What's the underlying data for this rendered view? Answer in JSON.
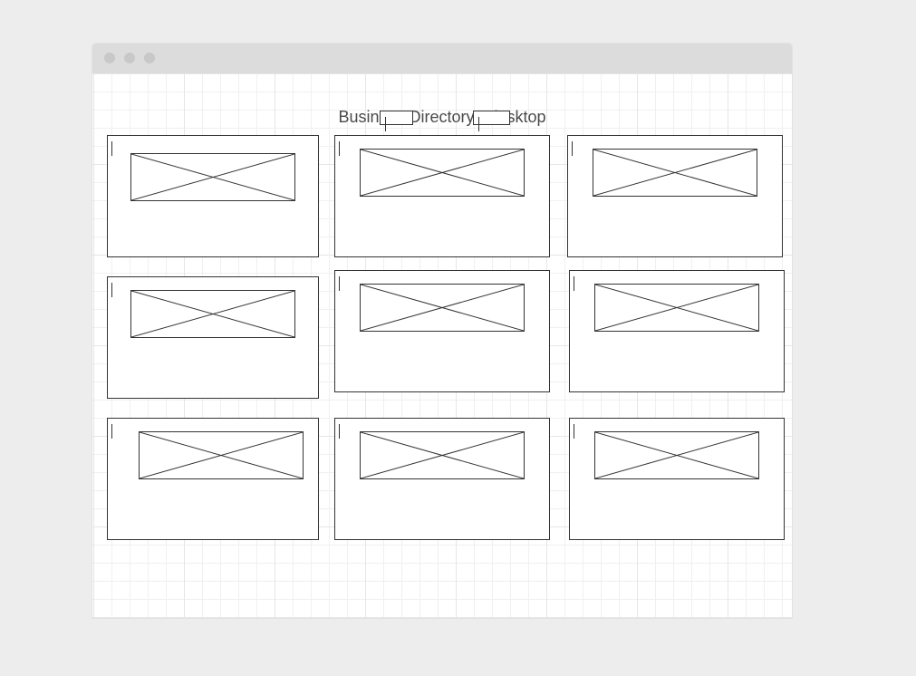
{
  "page": {
    "title": "Business Directory - desktop"
  },
  "window": {
    "controls": [
      "close-dot",
      "minimize-dot",
      "maximize-dot"
    ]
  },
  "search_fields": [
    {
      "name": "search-field-1",
      "value": ""
    },
    {
      "name": "search-field-2",
      "value": ""
    }
  ],
  "cards": [
    {
      "name": "business-card-1",
      "image": "image-placeholder-icon"
    },
    {
      "name": "business-card-2",
      "image": "image-placeholder-icon"
    },
    {
      "name": "business-card-3",
      "image": "image-placeholder-icon"
    },
    {
      "name": "business-card-4",
      "image": "image-placeholder-icon"
    },
    {
      "name": "business-card-5",
      "image": "image-placeholder-icon"
    },
    {
      "name": "business-card-6",
      "image": "image-placeholder-icon"
    },
    {
      "name": "business-card-7",
      "image": "image-placeholder-icon"
    },
    {
      "name": "business-card-8",
      "image": "image-placeholder-icon"
    },
    {
      "name": "business-card-9",
      "image": "image-placeholder-icon"
    }
  ],
  "colors": {
    "background": "#ededed",
    "titlebar": "#dcdcdc",
    "window_dot": "#c8c8c8",
    "stroke": "#333333",
    "title_text": "#4a4a4a"
  }
}
